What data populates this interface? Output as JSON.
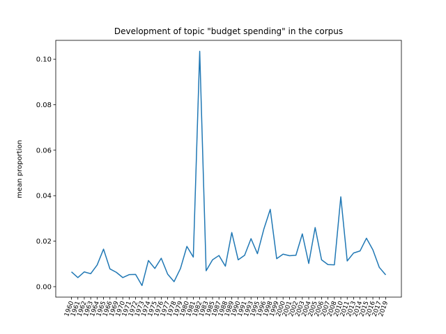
{
  "chart_data": {
    "type": "line",
    "title": "Development of topic \"budget spending\" in the corpus",
    "y_label": "mean proportion",
    "categories": [
      "1960",
      "1961",
      "1962",
      "1963",
      "1964",
      "1965",
      "1966",
      "1969",
      "1970",
      "1971",
      "1972",
      "1973",
      "1974",
      "1975",
      "1976",
      "1977",
      "1978",
      "1979",
      "1980",
      "1981",
      "1982",
      "1983",
      "1985",
      "1987",
      "1988",
      "1989",
      "1990",
      "1991",
      "1993",
      "1995",
      "1996",
      "1998",
      "1999",
      "2000",
      "2001",
      "2002",
      "2003",
      "2004",
      "2005",
      "2006",
      "2007",
      "2008",
      "2010",
      "2011",
      "2013",
      "2014",
      "2015",
      "2016",
      "2017",
      "2019"
    ],
    "series": [
      {
        "name": "budget spending",
        "color": "#1f77b4",
        "values": [
          0.0065,
          0.004,
          0.0065,
          0.0057,
          0.0095,
          0.0165,
          0.0078,
          0.0063,
          0.004,
          0.0053,
          0.0054,
          0.0005,
          0.0115,
          0.008,
          0.0125,
          0.0055,
          0.0022,
          0.008,
          0.0177,
          0.013,
          0.1035,
          0.007,
          0.0118,
          0.0137,
          0.009,
          0.0238,
          0.0118,
          0.0138,
          0.0211,
          0.0145,
          0.0253,
          0.034,
          0.0123,
          0.0143,
          0.0136,
          0.0138,
          0.0232,
          0.0102,
          0.026,
          0.0118,
          0.0097,
          0.0096,
          0.0395,
          0.0113,
          0.0148,
          0.0157,
          0.0213,
          0.0162,
          0.0085,
          0.0052
        ]
      }
    ],
    "ylim": [
      -0.0046,
      0.1083
    ],
    "yticks": [
      {
        "value": 0,
        "label": "0.00"
      },
      {
        "value": 0.02,
        "label": "0.02"
      },
      {
        "value": 0.04,
        "label": "0.04"
      },
      {
        "value": 0.06,
        "label": "0.06"
      },
      {
        "value": 0.08,
        "label": "0.08"
      },
      {
        "value": 0.1,
        "label": "0.10"
      }
    ],
    "grid": false
  }
}
